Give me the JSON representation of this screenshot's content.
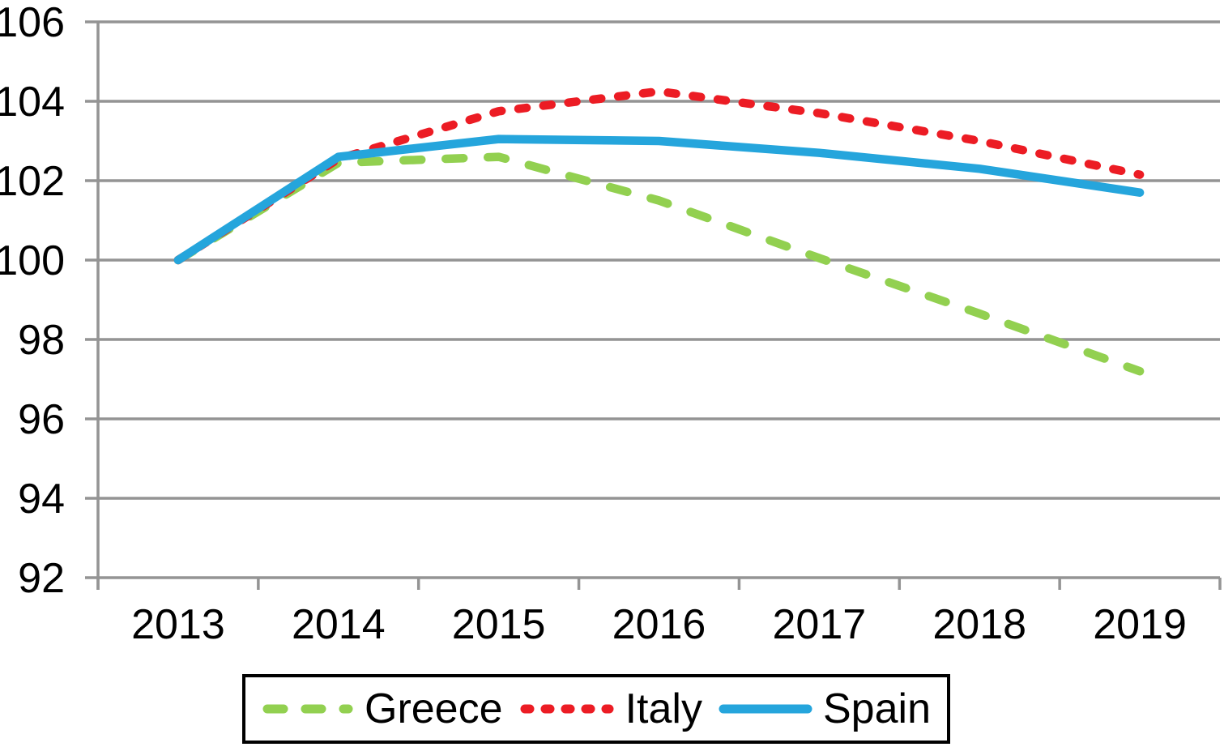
{
  "chart_data": {
    "type": "line",
    "title": "",
    "xlabel": "",
    "ylabel": "",
    "x": [
      2013,
      2014,
      2015,
      2016,
      2017,
      2018,
      2019
    ],
    "xticks": [
      "2013",
      "2014",
      "2015",
      "2016",
      "2017",
      "2018",
      "2019"
    ],
    "yticks": [
      92,
      94,
      96,
      98,
      100,
      102,
      104,
      106
    ],
    "ylim": [
      92,
      106
    ],
    "ytick_step": 2,
    "grid": true,
    "legend_position": "bottom-box",
    "series": [
      {
        "name": "Greece",
        "color": "#92D050",
        "dash_style": "long-dash",
        "values": [
          100,
          102.45,
          102.6,
          101.5,
          100.05,
          98.65,
          97.2
        ]
      },
      {
        "name": "Italy",
        "color": "#EC1C24",
        "dash_style": "short-dash",
        "values": [
          100,
          102.55,
          103.75,
          104.25,
          103.7,
          103.0,
          102.15
        ]
      },
      {
        "name": "Spain",
        "color": "#25A5DC",
        "dash_style": "solid",
        "values": [
          100,
          102.6,
          103.05,
          103.0,
          102.7,
          102.3,
          101.7
        ]
      }
    ]
  },
  "colors": {
    "grid": "#949494",
    "axis": "#949494",
    "text": "#000000",
    "background": "#FFFFFF",
    "legend_border": "#000000"
  },
  "legend": {
    "items": [
      {
        "label": "Greece"
      },
      {
        "label": "Italy"
      },
      {
        "label": "Spain"
      }
    ]
  }
}
